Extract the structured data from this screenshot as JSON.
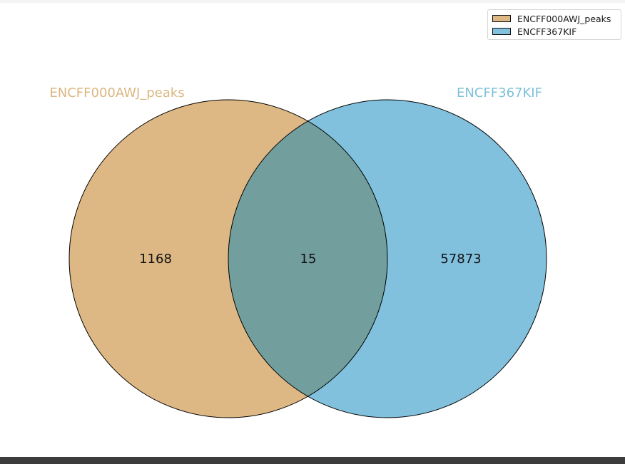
{
  "legend": {
    "entries": [
      {
        "label": "ENCFF000AWJ_peaks",
        "color": "#deb884"
      },
      {
        "label": "ENCFF367KIF",
        "color": "#81c1dd"
      }
    ]
  },
  "sets": [
    {
      "name": "ENCFF000AWJ_peaks",
      "color": "#deb884",
      "label_color": "#dbb781"
    },
    {
      "name": "ENCFF367KIF",
      "color": "#81c1dd",
      "label_color": "#7fc0d9"
    }
  ],
  "regions": {
    "only_a": "1168",
    "both": "15",
    "only_b": "57873"
  },
  "intersection_color": "#729e9e"
}
